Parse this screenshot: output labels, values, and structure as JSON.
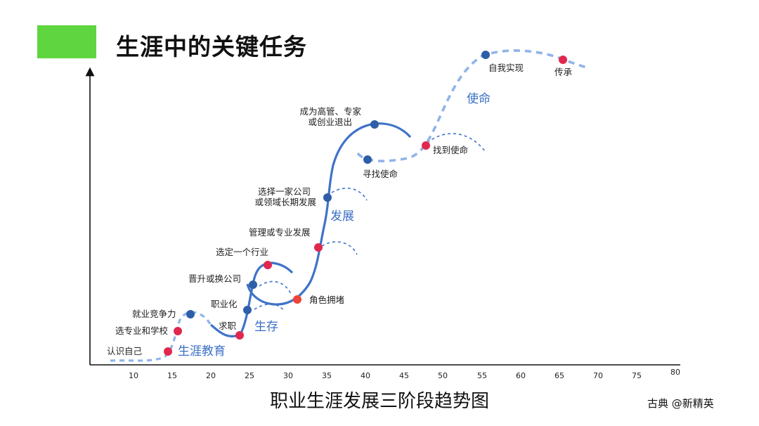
{
  "header": {
    "title": "生涯中的关键任务"
  },
  "caption": "职业生涯发展三阶段趋势图",
  "credit": "古典 @新精英",
  "colors": {
    "accent_green": "#5fd63f",
    "curve_blue": "#3f73c9",
    "dash_blue": "#8fb4e8",
    "dot_blue": "#2f5ea8",
    "dot_red": "#e0284f"
  },
  "axis": {
    "ticks": [
      "10",
      "15",
      "20",
      "25",
      "30",
      "35",
      "40",
      "45",
      "50",
      "55",
      "60",
      "65",
      "70",
      "75",
      "80"
    ]
  },
  "phases": [
    "生涯教育",
    "生存",
    "发展",
    "使命"
  ],
  "milestones": [
    {
      "label": "认识自己",
      "color": "red"
    },
    {
      "label": "选专业和学校",
      "color": "red"
    },
    {
      "label": "就业竞争力",
      "color": "blue"
    },
    {
      "label": "求职",
      "color": "red"
    },
    {
      "label": "职业化",
      "color": "blue"
    },
    {
      "label": "晋升或换公司",
      "color": "blue"
    },
    {
      "label": "选定一个行业",
      "color": "red"
    },
    {
      "label": "角色拥堵",
      "color": "red"
    },
    {
      "label": "管理或专业发展",
      "color": "red"
    },
    {
      "label": "选择一家公司",
      "label2": "或领域长期发展",
      "color": "blue"
    },
    {
      "label": "成为高管、专家",
      "label2": "或创业退出",
      "color": "blue"
    },
    {
      "label": "寻找使命",
      "color": "blue"
    },
    {
      "label": "找到使命",
      "color": "red"
    },
    {
      "label": "自我实现",
      "color": "blue"
    },
    {
      "label": "传承",
      "color": "red"
    }
  ]
}
